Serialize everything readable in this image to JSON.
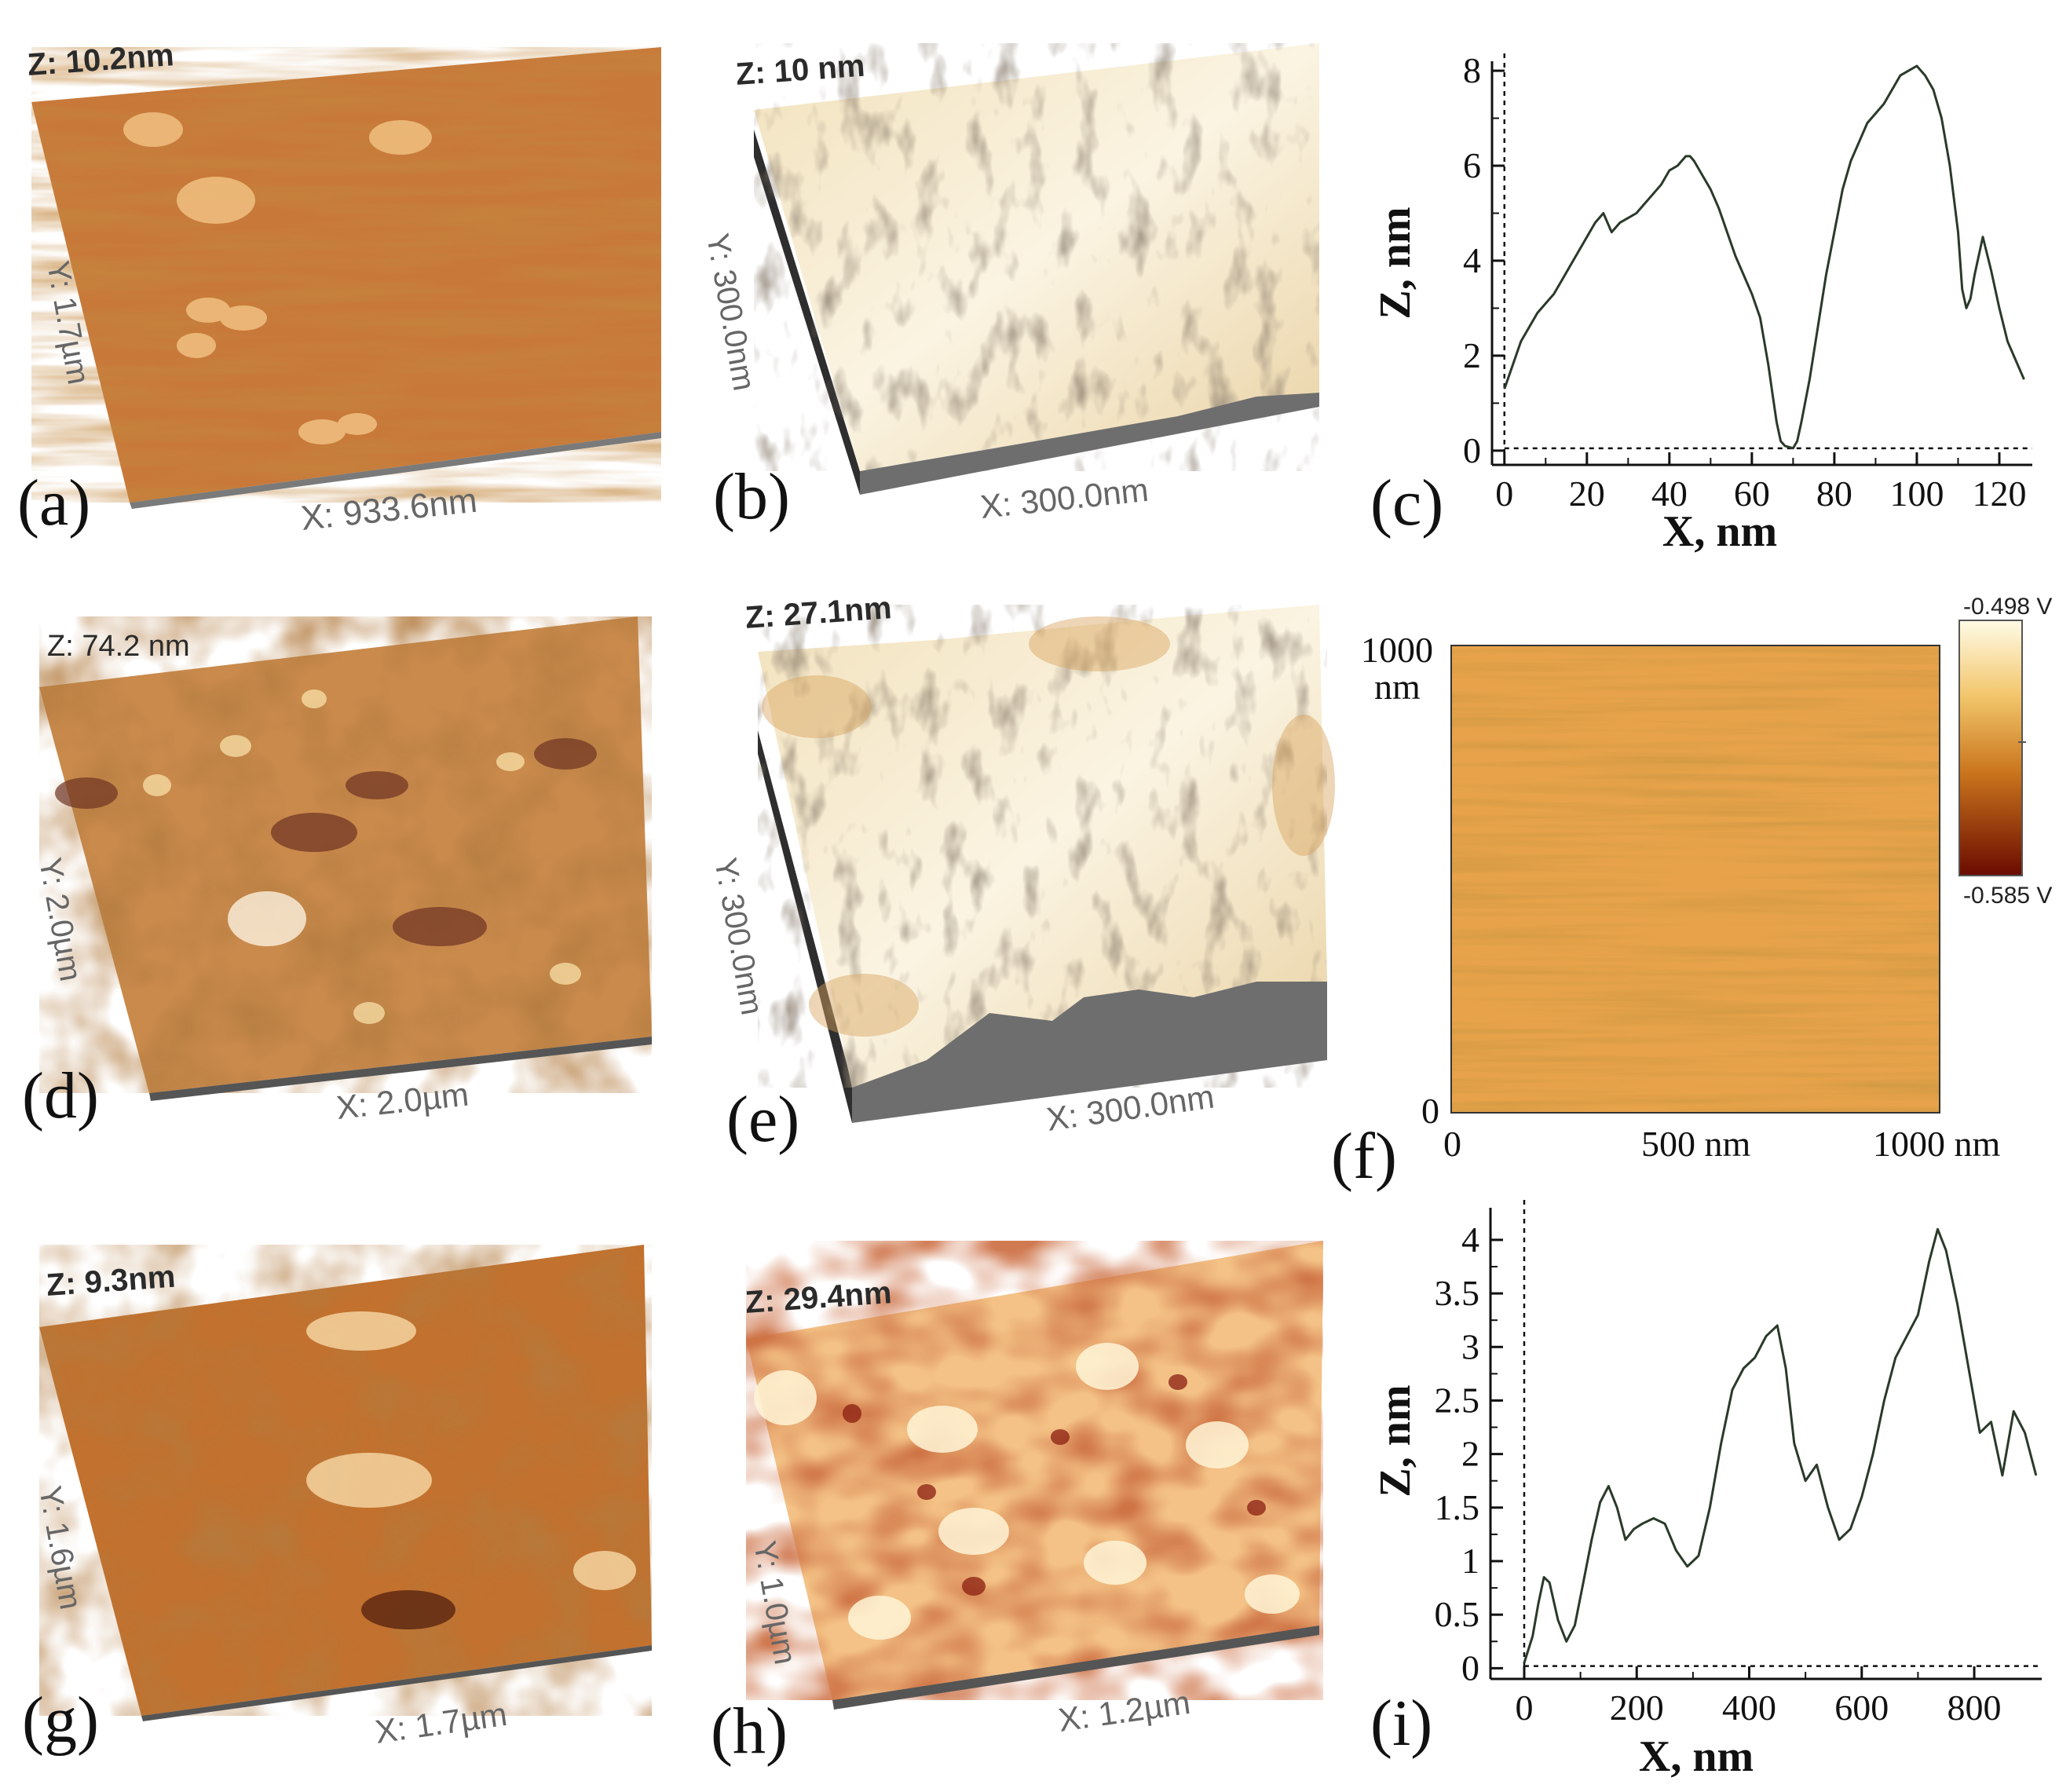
{
  "figure": {
    "panels": [
      {
        "letter": "(a)",
        "z": "Z: 10.2nm",
        "y": "Y: 1.7µm",
        "x": "X: 933.6nm"
      },
      {
        "letter": "(b)",
        "z": "Z: 10 nm",
        "y": "Y: 300.0nm",
        "x": "X: 300.0nm"
      },
      {
        "letter": "(c)"
      },
      {
        "letter": "(d)",
        "z": "Z: 74.2 nm",
        "y": "Y: 2.0µm",
        "x": "X: 2.0µm"
      },
      {
        "letter": "(e)",
        "z": "Z: 27.1nm",
        "y": "Y: 300.0nm",
        "x": "X: 300.0nm"
      },
      {
        "letter": "(f)"
      },
      {
        "letter": "(g)",
        "z": "Z: 9.3nm",
        "y": "Y: 1.6µm",
        "x": "X: 1.7µm"
      },
      {
        "letter": "(h)",
        "z": "Z: 29.4nm",
        "y": "Y: 1.0µm",
        "x": "X: 1.2µm"
      },
      {
        "letter": "(i)"
      }
    ],
    "map_f": {
      "y_top": "1000",
      "y_unit": "nm",
      "y_zero": "0",
      "x_ticks": [
        "0",
        "500 nm",
        "1000 nm"
      ],
      "colorbar_max": "-0.498 V",
      "colorbar_min": "-0.585 V"
    },
    "colors": {
      "afm_orange": "#c8793a",
      "afm_light": "#f7e7c4",
      "line": "#2a3a2a",
      "baseline": "#000000"
    }
  },
  "chart_data": [
    {
      "type": "line",
      "panel": "(c)",
      "xlabel": "X, nm",
      "ylabel": "Z, nm",
      "xlim": [
        -3,
        128
      ],
      "ylim": [
        -0.3,
        8.2
      ],
      "xticks": [
        0,
        20,
        40,
        60,
        80,
        100,
        120
      ],
      "yticks": [
        0,
        2,
        4,
        6,
        8
      ],
      "x": [
        0,
        2,
        4,
        6,
        8,
        10,
        12,
        14,
        16,
        18,
        20,
        22,
        24,
        26,
        28,
        30,
        32,
        34,
        36,
        38,
        40,
        42,
        44,
        45,
        46,
        48,
        50,
        52,
        54,
        56,
        58,
        60,
        62,
        64,
        65,
        66,
        67,
        68,
        70,
        71,
        72,
        74,
        76,
        78,
        80,
        82,
        84,
        86,
        88,
        90,
        92,
        94,
        96,
        98,
        100,
        102,
        104,
        106,
        108,
        110,
        111,
        112,
        113,
        114,
        116,
        118,
        120,
        122,
        124,
        126
      ],
      "y": [
        1.3,
        1.8,
        2.3,
        2.6,
        2.9,
        3.1,
        3.3,
        3.6,
        3.9,
        4.2,
        4.5,
        4.8,
        5.0,
        4.6,
        4.8,
        4.9,
        5.0,
        5.2,
        5.4,
        5.6,
        5.9,
        6.0,
        6.2,
        6.2,
        6.1,
        5.8,
        5.5,
        5.1,
        4.6,
        4.1,
        3.7,
        3.3,
        2.8,
        1.8,
        1.2,
        0.6,
        0.2,
        0.1,
        0.05,
        0.2,
        0.6,
        1.5,
        2.6,
        3.7,
        4.6,
        5.5,
        6.1,
        6.5,
        6.9,
        7.1,
        7.3,
        7.6,
        7.9,
        8.0,
        8.1,
        7.9,
        7.6,
        7.0,
        6.0,
        4.6,
        3.4,
        3.0,
        3.2,
        3.7,
        4.5,
        3.8,
        3.0,
        2.3,
        1.9,
        1.5
      ],
      "reference_line_y": 0.05,
      "reference_line_x": 0
    },
    {
      "type": "line",
      "panel": "(i)",
      "xlabel": "X, nm",
      "ylabel": "Z, nm",
      "xlim": [
        -60,
        920
      ],
      "ylim": [
        -0.1,
        4.3
      ],
      "xticks": [
        0,
        200,
        400,
        600,
        800
      ],
      "yticks": [
        0,
        0.5,
        1,
        1.5,
        2,
        2.5,
        3,
        3.5,
        4
      ],
      "x": [
        0,
        15,
        25,
        35,
        45,
        60,
        75,
        90,
        105,
        120,
        135,
        150,
        165,
        180,
        195,
        210,
        230,
        250,
        270,
        290,
        310,
        330,
        350,
        370,
        390,
        410,
        430,
        450,
        465,
        480,
        500,
        520,
        540,
        560,
        580,
        600,
        620,
        640,
        660,
        680,
        700,
        720,
        735,
        750,
        770,
        790,
        810,
        830,
        850,
        870,
        890,
        910
      ],
      "y": [
        0.05,
        0.3,
        0.6,
        0.85,
        0.8,
        0.45,
        0.25,
        0.4,
        0.8,
        1.2,
        1.55,
        1.7,
        1.5,
        1.2,
        1.3,
        1.35,
        1.4,
        1.35,
        1.1,
        0.95,
        1.05,
        1.5,
        2.1,
        2.6,
        2.8,
        2.9,
        3.1,
        3.2,
        2.8,
        2.1,
        1.75,
        1.9,
        1.5,
        1.2,
        1.3,
        1.6,
        2.0,
        2.5,
        2.9,
        3.1,
        3.3,
        3.8,
        4.1,
        3.9,
        3.4,
        2.8,
        2.2,
        2.3,
        1.8,
        2.4,
        2.2,
        1.8
      ],
      "reference_line_y": 0.02,
      "reference_line_x": 0
    }
  ]
}
